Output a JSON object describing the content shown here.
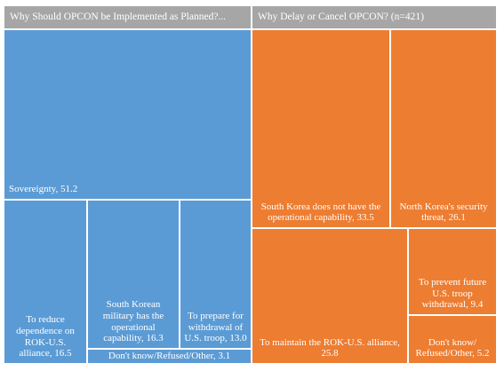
{
  "chart_data": {
    "type": "treemap",
    "groups": [
      {
        "header": "Why Should OPCON be Implemented as Planned?...",
        "color": "#5b9bd5",
        "items": [
          {
            "label": "Sovereignty, 51.2",
            "value": 51.2
          },
          {
            "label": "To reduce dependence on ROK-U.S. alliance, 16.5",
            "value": 16.5
          },
          {
            "label": "South Korean military has the operational capability, 16.3",
            "value": 16.3
          },
          {
            "label": "To prepare for withdrawal of U.S. troop, 13.0",
            "value": 13.0
          },
          {
            "label": "Don't know/Refused/Other, 3.1",
            "value": 3.1
          }
        ]
      },
      {
        "header": "Why Delay or Cancel OPCON? (n=421)",
        "color": "#ed7d31",
        "items": [
          {
            "label": "South Korea does not have the operational capability, 33.5",
            "value": 33.5
          },
          {
            "label": "North Korea's security threat, 26.1",
            "value": 26.1
          },
          {
            "label": "To maintain the ROK-U.S. alliance, 25.8",
            "value": 25.8
          },
          {
            "label": "To prevent future U.S. troop withdrawal, 9.4",
            "value": 9.4
          },
          {
            "label": "Don't know/ Refused/Other, 5.2",
            "value": 5.2
          }
        ]
      }
    ],
    "header_color": "#a6a6a6"
  }
}
